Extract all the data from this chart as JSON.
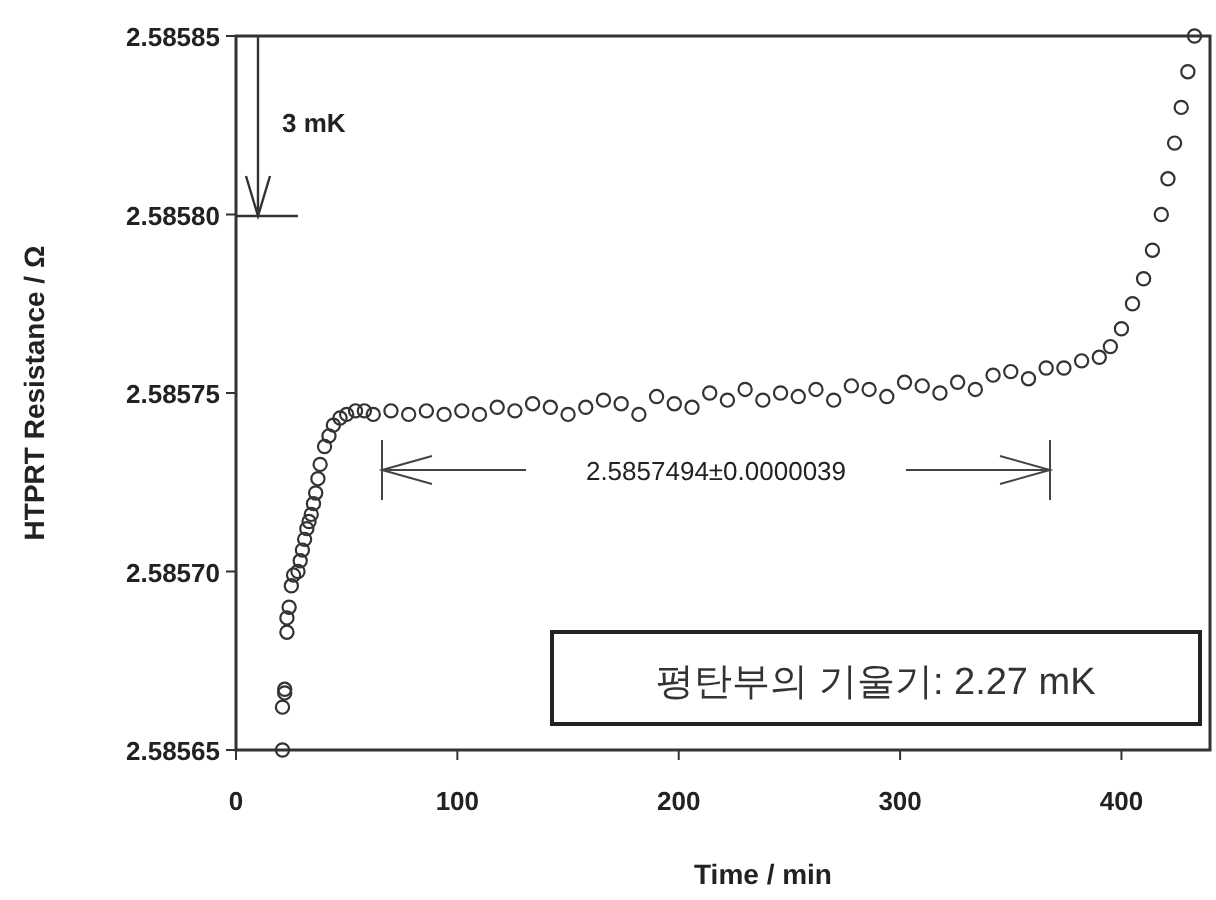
{
  "chart_data": {
    "type": "scatter",
    "xlabel": "Time / min",
    "ylabel": "HTPRT Resistance / Ω",
    "xlim": [
      0,
      440
    ],
    "xticks": [
      0,
      100,
      200,
      300,
      400
    ],
    "ylim": [
      2.58565,
      2.58585
    ],
    "yticks": [
      2.58565,
      {
        "value": 2.5857,
        "label": "2.58570"
      },
      2.58575,
      {
        "value": 2.5858,
        "label": "2.58580"
      },
      2.58585
    ],
    "marker": "circle",
    "grid": false,
    "annotations": [
      "3 mK",
      "2.5857494±0.0000039",
      "평탄부의 기울기: 2.27 mK"
    ],
    "series": [
      {
        "color": "#333333",
        "x": [
          21,
          21,
          22,
          22,
          23,
          23,
          24,
          25,
          26,
          28,
          29,
          30,
          31,
          32,
          33,
          34,
          35,
          36,
          37,
          38,
          40,
          42,
          44,
          47,
          50,
          54,
          58,
          62,
          70,
          78,
          86,
          94,
          102,
          110,
          118,
          126,
          134,
          142,
          150,
          158,
          166,
          174,
          182,
          190,
          198,
          206,
          214,
          222,
          230,
          238,
          246,
          254,
          262,
          270,
          278,
          286,
          294,
          302,
          310,
          318,
          326,
          334,
          342,
          350,
          358,
          366,
          374,
          382,
          390,
          395,
          400,
          405,
          410,
          414,
          418,
          421,
          424,
          427,
          430,
          433
        ],
        "values": [
          2.58565,
          2.585662,
          2.585666,
          2.585667,
          2.585683,
          2.585687,
          2.58569,
          2.585696,
          2.585699,
          2.5857,
          2.585703,
          2.585706,
          2.585709,
          2.585712,
          2.585714,
          2.585716,
          2.585719,
          2.585722,
          2.585726,
          2.58573,
          2.585735,
          2.585738,
          2.585741,
          2.585743,
          2.585744,
          2.585745,
          2.585745,
          2.585744,
          2.585745,
          2.585744,
          2.585745,
          2.585744,
          2.585745,
          2.585744,
          2.585746,
          2.585745,
          2.585747,
          2.585746,
          2.585744,
          2.585746,
          2.585748,
          2.585747,
          2.585744,
          2.585749,
          2.585747,
          2.585746,
          2.58575,
          2.585748,
          2.585751,
          2.585748,
          2.58575,
          2.585749,
          2.585751,
          2.585748,
          2.585752,
          2.585751,
          2.585749,
          2.585753,
          2.585752,
          2.58575,
          2.585753,
          2.585751,
          2.585755,
          2.585756,
          2.585754,
          2.585757,
          2.585757,
          2.585759,
          2.58576,
          2.585763,
          2.585768,
          2.585775,
          2.585782,
          2.58579,
          2.5858,
          2.58581,
          2.58582,
          2.58583,
          2.58584,
          2.58585
        ]
      }
    ]
  }
}
